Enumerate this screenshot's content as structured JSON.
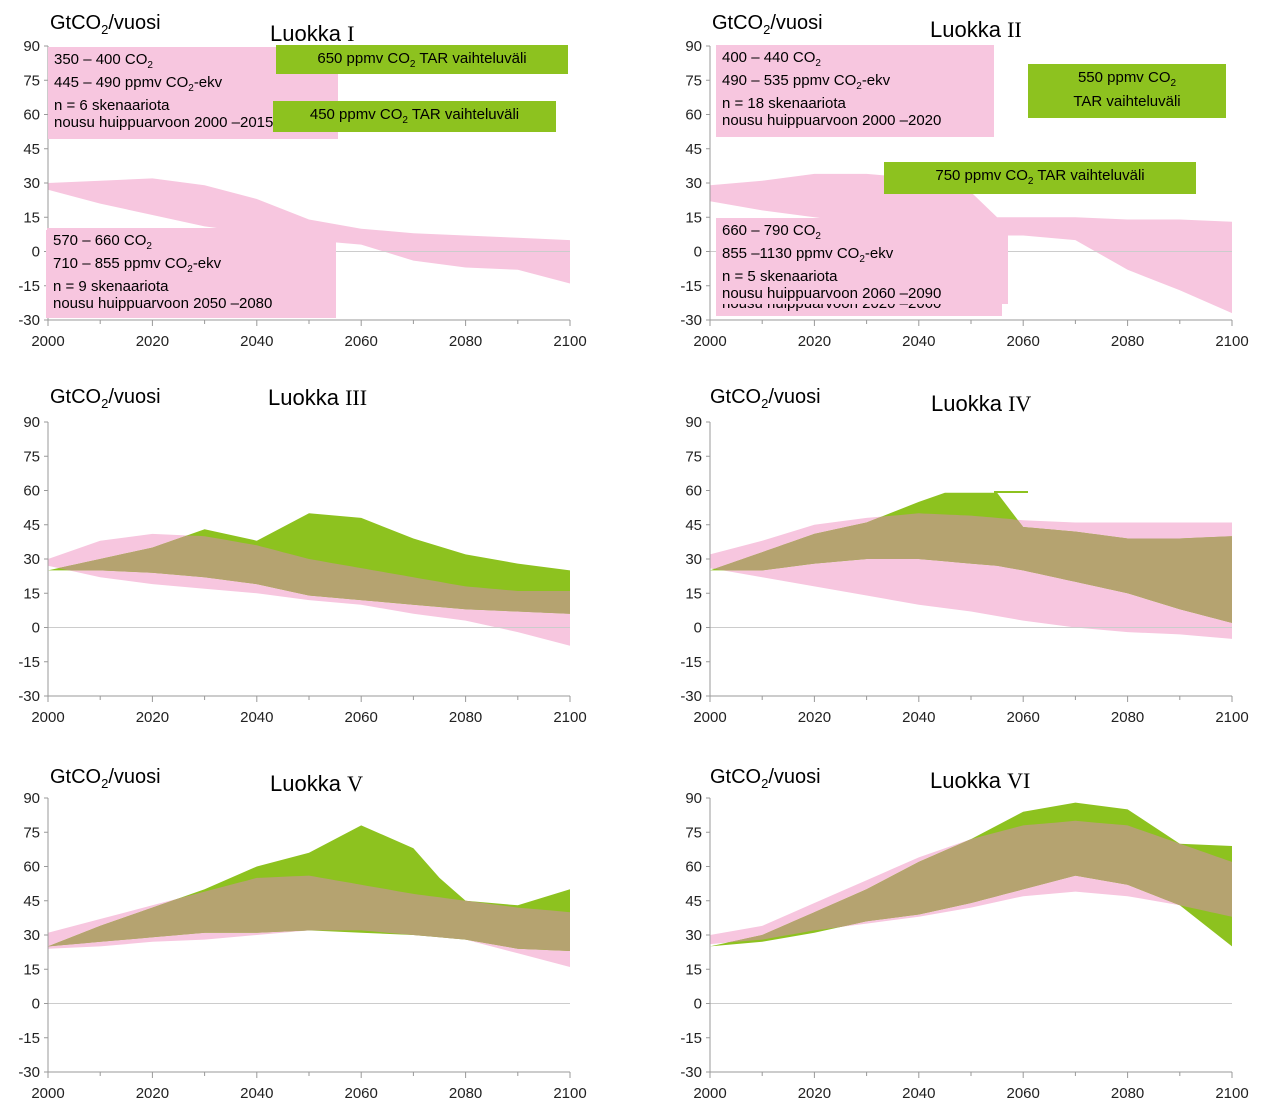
{
  "chart_data": [
    {
      "type": "area",
      "title": "Luokka I",
      "ylabel": "GtCO2/vuosi",
      "x": [
        2000,
        2100
      ],
      "xlim": [
        2000,
        2100
      ],
      "ylim": [
        -30,
        90
      ],
      "xticks": [
        "2000",
        "2020",
        "2040",
        "2060",
        "2080",
        "2100"
      ],
      "yticks": [
        "90",
        "75",
        "60",
        "45",
        "30",
        "15",
        "0",
        "-15",
        "-30"
      ],
      "info": [
        "350 – 400 CO2",
        "445 – 490 ppmv CO2-ekv",
        "n = 6 skenaariota",
        "nousu huippuarvoon 2000 –2015"
      ],
      "pink_band": {
        "x": [
          2000,
          2010,
          2020,
          2030,
          2040,
          2050,
          2060,
          2070,
          2080,
          2090,
          2100
        ],
        "upper": [
          30,
          31,
          32,
          29,
          23,
          14,
          10,
          8,
          7,
          6,
          5
        ],
        "lower": [
          27,
          21,
          16,
          11,
          8,
          5,
          3,
          -4,
          -7,
          -8,
          -14
        ]
      }
    },
    {
      "type": "area",
      "title": "Luokka II",
      "ylabel": "GtCO2/vuosi",
      "x": [
        2000,
        2100
      ],
      "xlim": [
        2000,
        2100
      ],
      "ylim": [
        -30,
        90
      ],
      "xticks": [
        "2000",
        "2020",
        "2040",
        "2060",
        "2080",
        "2100"
      ],
      "yticks": [
        "90",
        "75",
        "60",
        "45",
        "30",
        "15",
        "0",
        "-15",
        "-30"
      ],
      "info": [
        "400 – 440 CO2",
        "490 – 535 ppmv CO2-ekv",
        "n = 18 skenaariota",
        "nousu huippuarvoon 2000 –2020"
      ],
      "pink_band": {
        "x": [
          2000,
          2010,
          2020,
          2030,
          2040,
          2050,
          2055,
          2060,
          2070,
          2080,
          2090,
          2100
        ],
        "upper": [
          29,
          31,
          34,
          34,
          32,
          26,
          15,
          15,
          15,
          14,
          14,
          13
        ],
        "lower": [
          22,
          18,
          15,
          12,
          10,
          8,
          7,
          7,
          5,
          -8,
          -17,
          -27
        ]
      }
    },
    {
      "type": "area",
      "title": "Luokka III",
      "ylabel": "GtCO2/vuosi",
      "x": [
        2000,
        2100
      ],
      "xlim": [
        2000,
        2100
      ],
      "ylim": [
        -30,
        90
      ],
      "xticks": [
        "2000",
        "2020",
        "2040",
        "2060",
        "2080",
        "2100"
      ],
      "yticks": [
        "90",
        "75",
        "60",
        "45",
        "30",
        "15",
        "0",
        "-15",
        "-30"
      ],
      "info": [
        "440 – 480 CO2",
        "535 – 590 ppmv CO2-ekv",
        "n = 21 skenaariota",
        "nousu huippuarvoon 2010 –2030"
      ],
      "tar_label": "450 ppmv CO2 TAR vaihteluväli",
      "pink_band": {
        "x": [
          2000,
          2010,
          2020,
          2030,
          2040,
          2050,
          2060,
          2070,
          2080,
          2090,
          2100
        ],
        "upper": [
          30,
          38,
          41,
          40,
          36,
          30,
          26,
          22,
          18,
          16,
          16
        ],
        "lower": [
          27,
          22,
          19,
          17,
          15,
          12,
          10,
          6,
          3,
          -2,
          -8
        ]
      },
      "tar_band": {
        "x": [
          2000,
          2010,
          2020,
          2030,
          2040,
          2050,
          2060,
          2070,
          2080,
          2090,
          2100
        ],
        "upper": [
          25,
          30,
          35,
          43,
          38,
          50,
          48,
          39,
          32,
          28,
          25
        ],
        "lower": [
          25,
          25,
          24,
          22,
          19,
          14,
          12,
          10,
          8,
          7,
          6
        ]
      }
    },
    {
      "type": "area",
      "title": "Luokka IV",
      "ylabel": "GtCO2/vuosi",
      "x": [
        2000,
        2100
      ],
      "xlim": [
        2000,
        2100
      ],
      "ylim": [
        -30,
        90
      ],
      "xticks": [
        "2000",
        "2020",
        "2040",
        "2060",
        "2080",
        "2100"
      ],
      "yticks": [
        "90",
        "75",
        "60",
        "45",
        "30",
        "15",
        "0",
        "-15",
        "-30"
      ],
      "info": [
        "480 – 570 CO2",
        "590 – 710 ppmv CO2-ekv",
        "n = 118 skenaariota",
        "nousu huippuarvoon 2020 –2060"
      ],
      "tar_label": "550 ppmv CO2 TAR vaihteluväli",
      "pink_band": {
        "x": [
          2000,
          2010,
          2020,
          2030,
          2040,
          2050,
          2060,
          2070,
          2080,
          2090,
          2100
        ],
        "upper": [
          32,
          38,
          45,
          48,
          50,
          49,
          47,
          46,
          46,
          46,
          46
        ],
        "lower": [
          26,
          22,
          18,
          14,
          10,
          7,
          3,
          0,
          -2,
          -3,
          -5
        ]
      },
      "tar_band": {
        "x": [
          2000,
          2010,
          2020,
          2030,
          2040,
          2045,
          2050,
          2055,
          2060,
          2070,
          2080,
          2090,
          2100
        ],
        "upper": [
          25,
          33,
          41,
          46,
          55,
          59,
          59,
          59,
          44,
          42,
          39,
          39,
          40
        ],
        "lower": [
          25,
          25,
          28,
          30,
          30,
          29,
          28,
          27,
          25,
          20,
          15,
          8,
          2
        ]
      }
    },
    {
      "type": "area",
      "title": "Luokka V",
      "ylabel": "GtCO2/vuosi",
      "x": [
        2000,
        2100
      ],
      "xlim": [
        2000,
        2100
      ],
      "ylim": [
        -30,
        90
      ],
      "xticks": [
        "2000",
        "2020",
        "2040",
        "2060",
        "2080",
        "2100"
      ],
      "yticks": [
        "90",
        "75",
        "60",
        "45",
        "30",
        "15",
        "0",
        "-15",
        "-30"
      ],
      "info": [
        "570 – 660 CO2",
        "710 – 855 ppmv CO2-ekv",
        "n = 9 skenaariota",
        "nousu huippuarvoon 2050 –2080"
      ],
      "tar_label": "650 ppmv CO2 TAR vaihteluväli",
      "pink_band": {
        "x": [
          2000,
          2010,
          2020,
          2030,
          2040,
          2050,
          2060,
          2070,
          2080,
          2090,
          2100
        ],
        "upper": [
          31,
          37,
          43,
          49,
          55,
          56,
          52,
          48,
          45,
          42,
          40
        ],
        "lower": [
          24,
          25,
          27,
          28,
          30,
          32,
          32,
          30,
          28,
          22,
          16
        ]
      },
      "tar_band": {
        "x": [
          2000,
          2010,
          2020,
          2030,
          2040,
          2050,
          2060,
          2070,
          2075,
          2080,
          2090,
          2100
        ],
        "upper": [
          25,
          34,
          42,
          50,
          60,
          66,
          78,
          68,
          55,
          45,
          43,
          50
        ],
        "lower": [
          25,
          27,
          29,
          31,
          31,
          32,
          31,
          30,
          29,
          28,
          24,
          23
        ]
      }
    },
    {
      "type": "area",
      "title": "Luokka VI",
      "ylabel": "GtCO2/vuosi",
      "x": [
        2000,
        2100
      ],
      "xlim": [
        2000,
        2100
      ],
      "ylim": [
        -30,
        90
      ],
      "xticks": [
        "2000",
        "2020",
        "2040",
        "2060",
        "2080",
        "2100"
      ],
      "yticks": [
        "90",
        "75",
        "60",
        "45",
        "30",
        "15",
        "0",
        "-15",
        "-30"
      ],
      "info": [
        "660 – 790 CO2",
        "855 –1130 ppmv CO2-ekv",
        "n = 5 skenaariota",
        "nousu huippuarvoon 2060 –2090"
      ],
      "tar_label": "750 ppmv CO2 TAR vaihteluväli",
      "pink_band": {
        "x": [
          2000,
          2010,
          2020,
          2030,
          2040,
          2050,
          2060,
          2070,
          2080,
          2090,
          2100
        ],
        "upper": [
          30,
          34,
          44,
          54,
          64,
          72,
          78,
          80,
          78,
          70,
          62
        ],
        "lower": [
          26,
          28,
          32,
          35,
          38,
          42,
          47,
          49,
          47,
          43,
          38
        ]
      },
      "tar_band": {
        "x": [
          2000,
          2010,
          2020,
          2030,
          2040,
          2050,
          2060,
          2070,
          2080,
          2090,
          2100
        ],
        "upper": [
          25,
          30,
          40,
          50,
          62,
          72,
          84,
          88,
          85,
          70,
          69
        ],
        "lower": [
          25,
          27,
          31,
          36,
          39,
          44,
          50,
          56,
          52,
          43,
          25
        ]
      }
    }
  ],
  "colors": {
    "pink": "#f7c6df",
    "green": "#8dc21f",
    "overlap": "#b5a370",
    "zero_line": "#cccccc",
    "axis": "#999999"
  }
}
